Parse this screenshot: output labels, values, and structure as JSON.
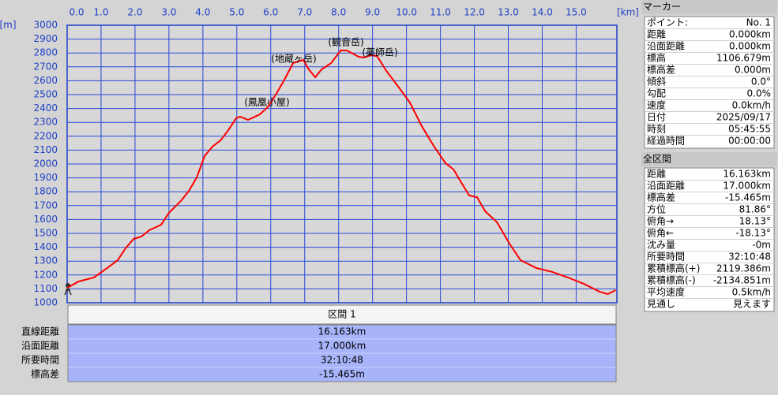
{
  "chart_data": {
    "type": "line",
    "x_unit": "[km]",
    "y_unit": "[m]",
    "x": [
      0,
      0.33,
      0.79,
      1.02,
      1.49,
      1.72,
      1.96,
      2.19,
      2.42,
      2.77,
      3.0,
      3.35,
      3.59,
      3.82,
      4.05,
      4.28,
      4.52,
      4.75,
      4.98,
      5.1,
      5.33,
      5.68,
      5.91,
      6.15,
      6.38,
      6.66,
      6.8,
      6.96,
      7.12,
      7.31,
      7.5,
      7.78,
      8.06,
      8.24,
      8.59,
      8.75,
      8.94,
      9.13,
      9.41,
      9.76,
      10.1,
      10.45,
      10.8,
      11.15,
      11.39,
      11.62,
      11.85,
      12.08,
      12.32,
      12.67,
      13.02,
      13.36,
      13.83,
      14.3,
      14.76,
      15.23,
      15.69,
      15.93,
      16.163
    ],
    "values": [
      1107,
      1153,
      1182,
      1222,
      1307,
      1392,
      1460,
      1477,
      1523,
      1562,
      1648,
      1733,
      1807,
      1903,
      2057,
      2125,
      2170,
      2244,
      2330,
      2341,
      2318,
      2358,
      2409,
      2500,
      2597,
      2727,
      2739,
      2750,
      2682,
      2625,
      2682,
      2727,
      2818,
      2818,
      2773,
      2767,
      2784,
      2778,
      2670,
      2557,
      2443,
      2273,
      2131,
      2006,
      1960,
      1864,
      1773,
      1761,
      1659,
      1580,
      1432,
      1307,
      1250,
      1222,
      1182,
      1136,
      1080,
      1062,
      1091
    ],
    "color": "#ff0000",
    "xlim": [
      0,
      16.2
    ],
    "ylim": [
      1000,
      3000
    ],
    "xticks": [
      {
        "value": 0,
        "label": "0.0"
      },
      {
        "value": 1,
        "label": "1.0"
      },
      {
        "value": 2,
        "label": "2.0"
      },
      {
        "value": 3,
        "label": "3.0"
      },
      {
        "value": 4,
        "label": "4.0"
      },
      {
        "value": 5,
        "label": "5.0"
      },
      {
        "value": 6,
        "label": "6.0"
      },
      {
        "value": 7,
        "label": "7.0"
      },
      {
        "value": 8,
        "label": "8.0"
      },
      {
        "value": 9,
        "label": "9.0"
      },
      {
        "value": 10,
        "label": "10.0"
      },
      {
        "value": 11,
        "label": "11.0"
      },
      {
        "value": 12,
        "label": "12.0"
      },
      {
        "value": 13,
        "label": "13.0"
      },
      {
        "value": 14,
        "label": "14.0"
      },
      {
        "value": 15,
        "label": "15.0"
      }
    ],
    "yticks": [
      1000,
      1100,
      1200,
      1300,
      1400,
      1500,
      1600,
      1700,
      1800,
      1900,
      2000,
      2100,
      2200,
      2300,
      2400,
      2500,
      2600,
      2700,
      2800,
      2900,
      3000
    ],
    "grid": true,
    "annotations": [
      "(鳳凰小屋)",
      "(地蔵ヶ岳)",
      "(観音岳)",
      "(薬師岳)"
    ]
  },
  "segment_table": {
    "header": "区間 1",
    "rows": [
      [
        "直線距離",
        "16.163km"
      ],
      [
        "沿面距離",
        "17.000km"
      ],
      [
        "所要時間",
        "32:10:48"
      ],
      [
        "標高差",
        "-15.465m"
      ]
    ]
  },
  "marker_panel": {
    "title": "マーカー",
    "rows": [
      [
        "ポイント:",
        "No. 1"
      ],
      [
        "距離",
        "0.000km"
      ],
      [
        "沿面距離",
        "0.000km"
      ],
      [
        "標高",
        "1106.679m"
      ],
      [
        "標高差",
        "0.000m"
      ],
      [
        "傾斜",
        "0.0°"
      ],
      [
        "勾配",
        "0.0%"
      ],
      [
        "速度",
        "0.0km/h"
      ],
      [
        "日付",
        "2025/09/17"
      ],
      [
        "時刻",
        "05:45:55"
      ],
      [
        "経過時間",
        "00:00:00"
      ]
    ]
  },
  "total_panel": {
    "title": "全区間",
    "rows": [
      [
        "距離",
        "16.163km"
      ],
      [
        "沿面距離",
        "17.000km"
      ],
      [
        "標高差",
        "-15.465m"
      ],
      [
        "方位",
        "81.86°"
      ],
      [
        "俯角→",
        "18.13°"
      ],
      [
        "俯角←",
        "-18.13°"
      ],
      [
        "沈み量",
        "-0m"
      ],
      [
        "所要時間",
        "32:10:48"
      ],
      [
        "累積標高(+)",
        "2119.386m"
      ],
      [
        "累積標高(-)",
        "-2134.851m"
      ],
      [
        "平均速度",
        "0.5km/h"
      ],
      [
        "見通し",
        "見えます"
      ]
    ]
  }
}
